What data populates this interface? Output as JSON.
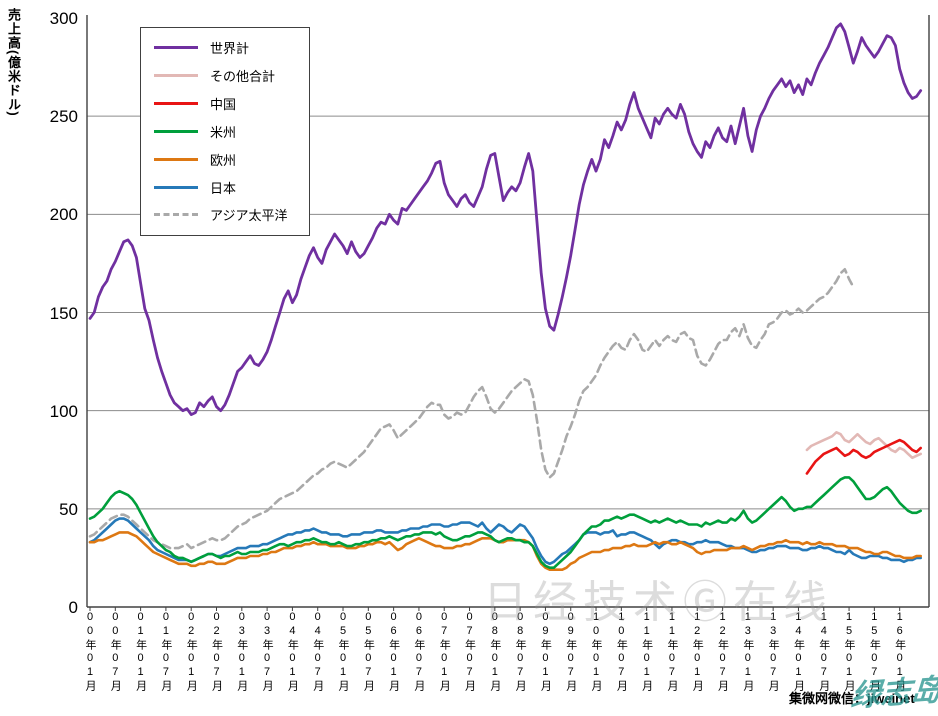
{
  "y_axis": {
    "title": "売上高(億米ドル)",
    "ticks": [
      {
        "label": "300",
        "value": 300
      },
      {
        "label": "250",
        "value": 250
      },
      {
        "label": "200",
        "value": 200
      },
      {
        "label": "150",
        "value": 150
      },
      {
        "label": "100",
        "value": 100
      },
      {
        "label": "50",
        "value": 50
      },
      {
        "label": "0",
        "value": 0
      }
    ]
  },
  "x_axis": {
    "labels": [
      "00年01月",
      "00年07月",
      "01年01月",
      "01年07月",
      "02年01月",
      "02年07月",
      "03年01月",
      "03年07月",
      "04年01月",
      "04年07月",
      "05年01月",
      "05年07月",
      "06年01月",
      "06年07月",
      "07年01月",
      "07年07月",
      "08年01月",
      "08年07月",
      "09年01月",
      "09年07月",
      "10年01月",
      "10年07月",
      "11年01月",
      "11年07月",
      "12年01月",
      "12年07月",
      "13年01月",
      "13年07月",
      "14年01月",
      "14年07月",
      "15年01月",
      "15年07月",
      "16年01月"
    ]
  },
  "watermarks": {
    "center": "日经技术Ⓖ在线",
    "bottom_right_text": "集微网微信：jiweinet",
    "bottom_right_stamp": "绿志岛"
  },
  "chart_data": {
    "type": "line",
    "title": "",
    "xlabel": "",
    "ylabel": "売上高(億米ドル)",
    "ylim": [
      0,
      300
    ],
    "grid": true,
    "legend_position": "top-left",
    "x_unit": "month",
    "x_start": "2000-01",
    "x_end": "2016-06",
    "x_tick_interval_months": 6,
    "axis_color": "#404040",
    "grid_color": "#8c8c8c",
    "series": [
      {
        "name": "世界計",
        "color": "#7030a0",
        "style": "solid",
        "width": 2.8,
        "start_index": 0,
        "values": [
          147,
          150,
          158,
          163,
          166,
          172,
          176,
          181,
          186,
          187,
          184,
          178,
          165,
          152,
          146,
          136,
          127,
          120,
          114,
          108,
          104,
          102,
          100,
          101,
          98,
          99,
          104,
          102,
          105,
          107,
          102,
          100,
          103,
          108,
          114,
          120,
          122,
          125,
          128,
          124,
          123,
          126,
          130,
          136,
          143,
          150,
          157,
          161,
          155,
          159,
          167,
          173,
          179,
          183,
          178,
          175,
          182,
          186,
          190,
          187,
          184,
          180,
          186,
          181,
          178,
          180,
          184,
          188,
          193,
          196,
          195,
          200,
          197,
          195,
          203,
          202,
          205,
          208,
          211,
          214,
          217,
          221,
          226,
          227,
          216,
          210,
          207,
          204,
          208,
          210,
          206,
          204,
          209,
          214,
          223,
          230,
          231,
          219,
          207,
          211,
          214,
          212,
          216,
          224,
          231,
          222,
          196,
          170,
          152,
          143,
          141,
          149,
          158,
          168,
          179,
          192,
          205,
          215,
          222,
          228,
          222,
          228,
          238,
          234,
          240,
          247,
          243,
          248,
          256,
          262,
          254,
          249,
          244,
          239,
          249,
          246,
          251,
          254,
          251,
          249,
          256,
          251,
          242,
          236,
          232,
          229,
          237,
          234,
          240,
          244,
          239,
          237,
          245,
          236,
          245,
          254,
          240,
          232,
          243,
          250,
          254,
          259,
          263,
          266,
          269,
          265,
          268,
          262,
          266,
          261,
          269,
          266,
          272,
          277,
          281,
          285,
          290,
          295,
          297,
          293,
          285,
          277,
          283,
          290,
          286,
          283,
          280,
          283,
          287,
          291,
          290,
          286,
          274,
          267,
          262,
          259,
          260,
          263
        ]
      },
      {
        "name": "その他合計",
        "color": "#e2b8b5",
        "style": "solid",
        "width": 2.6,
        "start_index": 170,
        "values": [
          80,
          82,
          83,
          84,
          85,
          86,
          87,
          89,
          88,
          85,
          84,
          86,
          88,
          86,
          84,
          83,
          85,
          86,
          84,
          82,
          80,
          79,
          81,
          80,
          78,
          76,
          77,
          78
        ]
      },
      {
        "name": "中国",
        "color": "#e81414",
        "style": "solid",
        "width": 2.6,
        "start_index": 170,
        "values": [
          68,
          71,
          74,
          76,
          78,
          79,
          80,
          81,
          79,
          77,
          78,
          80,
          79,
          77,
          76,
          77,
          79,
          80,
          81,
          82,
          83,
          84,
          85,
          84,
          82,
          80,
          79,
          81
        ]
      },
      {
        "name": "米州",
        "color": "#009f3c",
        "style": "solid",
        "width": 2.6,
        "start_index": 0,
        "values": [
          45,
          46,
          48,
          50,
          53,
          56,
          58,
          59,
          58,
          57,
          55,
          52,
          48,
          44,
          40,
          36,
          33,
          31,
          29,
          28,
          26,
          25,
          25,
          24,
          23,
          24,
          25,
          26,
          27,
          27,
          26,
          25,
          26,
          26,
          27,
          28,
          27,
          27,
          28,
          28,
          28,
          29,
          29,
          30,
          31,
          32,
          32,
          31,
          32,
          33,
          33,
          34,
          34,
          35,
          34,
          33,
          33,
          32,
          32,
          33,
          32,
          31,
          31,
          32,
          32,
          33,
          33,
          34,
          34,
          35,
          35,
          36,
          35,
          34,
          35,
          36,
          36,
          37,
          37,
          38,
          38,
          38,
          37,
          38,
          36,
          35,
          34,
          34,
          35,
          36,
          36,
          37,
          38,
          38,
          37,
          36,
          34,
          33,
          34,
          35,
          35,
          34,
          34,
          33,
          33,
          31,
          27,
          23,
          21,
          20,
          20,
          22,
          24,
          26,
          28,
          31,
          34,
          37,
          39,
          41,
          41,
          42,
          44,
          44,
          45,
          46,
          45,
          46,
          47,
          47,
          46,
          45,
          44,
          43,
          44,
          43,
          44,
          45,
          44,
          43,
          44,
          43,
          42,
          42,
          42,
          41,
          43,
          42,
          43,
          44,
          43,
          43,
          45,
          44,
          46,
          49,
          45,
          43,
          44,
          46,
          48,
          50,
          52,
          54,
          56,
          54,
          51,
          49,
          50,
          50,
          51,
          51,
          53,
          55,
          57,
          59,
          61,
          63,
          65,
          66,
          66,
          64,
          61,
          58,
          55,
          55,
          56,
          58,
          60,
          61,
          59,
          56,
          53,
          51,
          49,
          48,
          48,
          49
        ]
      },
      {
        "name": "欧州",
        "color": "#dd7813",
        "style": "solid",
        "width": 2.6,
        "start_index": 0,
        "values": [
          33,
          33,
          34,
          34,
          35,
          36,
          37,
          38,
          38,
          38,
          37,
          36,
          34,
          32,
          30,
          28,
          27,
          26,
          25,
          24,
          23,
          22,
          22,
          22,
          21,
          21,
          22,
          22,
          23,
          23,
          22,
          22,
          22,
          23,
          24,
          25,
          25,
          25,
          26,
          26,
          26,
          27,
          27,
          28,
          28,
          29,
          30,
          30,
          30,
          31,
          31,
          32,
          32,
          33,
          32,
          32,
          32,
          31,
          31,
          31,
          31,
          30,
          30,
          30,
          31,
          31,
          32,
          32,
          33,
          33,
          32,
          33,
          31,
          29,
          30,
          32,
          33,
          34,
          35,
          34,
          33,
          32,
          31,
          31,
          30,
          30,
          30,
          31,
          31,
          32,
          32,
          33,
          34,
          35,
          35,
          35,
          34,
          33,
          33,
          34,
          34,
          34,
          34,
          34,
          33,
          31,
          26,
          22,
          20,
          19,
          19,
          19,
          19,
          20,
          22,
          23,
          25,
          26,
          27,
          28,
          28,
          28,
          29,
          29,
          30,
          30,
          30,
          31,
          31,
          32,
          31,
          31,
          31,
          32,
          33,
          32,
          33,
          33,
          32,
          32,
          33,
          32,
          31,
          30,
          28,
          27,
          28,
          28,
          29,
          29,
          29,
          29,
          30,
          30,
          30,
          31,
          30,
          29,
          30,
          31,
          31,
          32,
          32,
          33,
          33,
          34,
          33,
          33,
          33,
          32,
          33,
          32,
          32,
          33,
          32,
          32,
          32,
          31,
          31,
          31,
          30,
          30,
          30,
          29,
          28,
          28,
          27,
          27,
          28,
          28,
          27,
          26,
          26,
          25,
          25,
          25,
          26,
          26
        ]
      },
      {
        "name": "日本",
        "color": "#2679b8",
        "style": "solid",
        "width": 2.6,
        "start_index": 0,
        "values": [
          33,
          34,
          36,
          38,
          40,
          42,
          44,
          45,
          45,
          44,
          42,
          40,
          38,
          36,
          34,
          31,
          29,
          28,
          27,
          26,
          25,
          24,
          24,
          24,
          23,
          24,
          25,
          26,
          27,
          27,
          26,
          26,
          27,
          28,
          29,
          30,
          30,
          30,
          31,
          31,
          31,
          32,
          32,
          33,
          34,
          35,
          36,
          37,
          37,
          38,
          38,
          39,
          39,
          40,
          39,
          38,
          38,
          37,
          37,
          37,
          36,
          36,
          37,
          37,
          37,
          38,
          38,
          38,
          39,
          39,
          38,
          38,
          38,
          38,
          39,
          39,
          40,
          40,
          40,
          41,
          41,
          42,
          42,
          42,
          41,
          41,
          42,
          42,
          43,
          43,
          43,
          42,
          41,
          43,
          40,
          38,
          40,
          42,
          41,
          39,
          38,
          40,
          42,
          41,
          38,
          35,
          30,
          26,
          23,
          22,
          23,
          25,
          27,
          28,
          30,
          32,
          34,
          37,
          38,
          38,
          38,
          37,
          38,
          38,
          39,
          36,
          37,
          37,
          38,
          38,
          37,
          36,
          35,
          34,
          32,
          30,
          32,
          33,
          34,
          34,
          33,
          33,
          32,
          32,
          33,
          33,
          34,
          33,
          33,
          33,
          32,
          31,
          31,
          30,
          30,
          30,
          29,
          28,
          28,
          29,
          29,
          30,
          30,
          31,
          31,
          31,
          30,
          30,
          30,
          29,
          29,
          30,
          30,
          31,
          30,
          30,
          29,
          28,
          28,
          27,
          29,
          27,
          26,
          25,
          25,
          26,
          26,
          26,
          25,
          25,
          24,
          24,
          24,
          23,
          24,
          24,
          25,
          25
        ]
      },
      {
        "name": "アジア太平洋",
        "color": "#a9a9a9",
        "style": "dashed",
        "width": 2.6,
        "start_index": 0,
        "values": [
          36,
          37,
          39,
          41,
          43,
          45,
          46,
          47,
          47,
          46,
          44,
          42,
          40,
          38,
          36,
          34,
          33,
          32,
          31,
          30,
          30,
          30,
          31,
          32,
          30,
          31,
          32,
          33,
          34,
          35,
          34,
          34,
          35,
          37,
          39,
          41,
          42,
          43,
          45,
          46,
          47,
          48,
          49,
          51,
          53,
          55,
          56,
          57,
          58,
          59,
          61,
          63,
          65,
          67,
          68,
          70,
          71,
          73,
          74,
          73,
          72,
          71,
          73,
          75,
          77,
          79,
          82,
          85,
          88,
          91,
          92,
          93,
          90,
          86,
          88,
          90,
          92,
          94,
          96,
          99,
          102,
          104,
          103,
          103,
          98,
          96,
          97,
          99,
          98,
          99,
          103,
          107,
          110,
          112,
          107,
          101,
          99,
          101,
          104,
          107,
          110,
          112,
          114,
          116,
          115,
          108,
          95,
          80,
          70,
          66,
          68,
          74,
          80,
          87,
          92,
          98,
          105,
          110,
          112,
          115,
          118,
          123,
          127,
          130,
          133,
          135,
          132,
          131,
          136,
          139,
          136,
          131,
          130,
          133,
          136,
          133,
          136,
          138,
          136,
          135,
          139,
          140,
          137,
          136,
          128,
          124,
          123,
          126,
          130,
          134,
          136,
          136,
          140,
          142,
          138,
          144,
          137,
          133,
          132,
          136,
          139,
          144,
          145,
          147,
          150,
          151,
          149,
          150,
          152,
          150,
          151,
          153,
          155,
          157,
          158,
          160,
          163,
          166,
          170,
          172,
          167,
          163
        ]
      }
    ]
  }
}
